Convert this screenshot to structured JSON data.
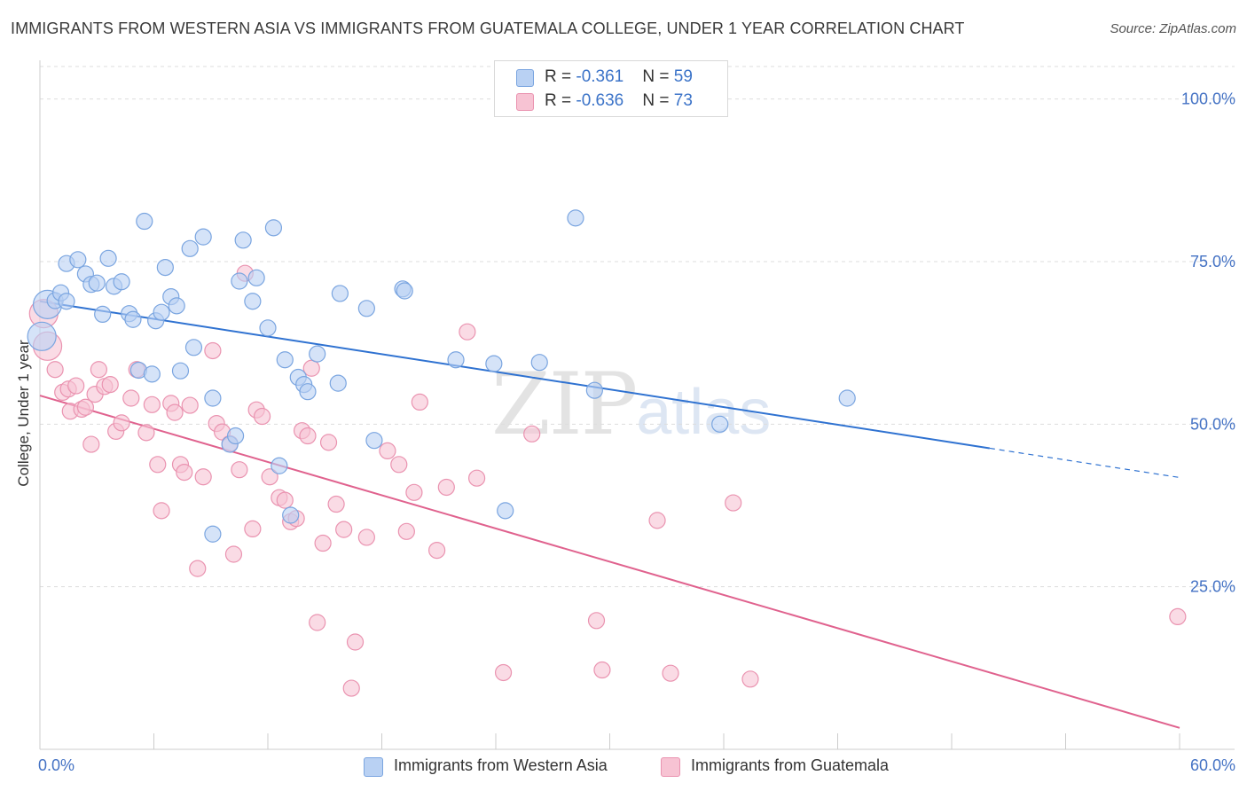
{
  "header": {
    "title": "IMMIGRANTS FROM WESTERN ASIA VS IMMIGRANTS FROM GUATEMALA COLLEGE, UNDER 1 YEAR CORRELATION CHART",
    "source": "Source: ZipAtlas.com"
  },
  "watermark": {
    "zip": "ZIP",
    "atlas": "atlas"
  },
  "legend": {
    "rows": [
      {
        "r_label": "R = ",
        "r_value": "-0.361",
        "n_label": "N = ",
        "n_value": "59"
      },
      {
        "r_label": "R = ",
        "r_value": "-0.636",
        "n_label": "N = ",
        "n_value": "73"
      }
    ]
  },
  "colors": {
    "blue_fill": "#b9d1f3",
    "blue_stroke": "#7aa5e0",
    "blue_line": "#2f72d1",
    "pink_fill": "#f7c3d3",
    "pink_stroke": "#ea93b0",
    "pink_line": "#e0628e",
    "axis_text": "#4472c4",
    "grid": "#dddddd"
  },
  "chart_data": {
    "type": "scatter",
    "title": "IMMIGRANTS FROM WESTERN ASIA VS IMMIGRANTS FROM GUATEMALA COLLEGE, UNDER 1 YEAR CORRELATION CHART",
    "xlabel": "",
    "ylabel": "College, Under 1 year",
    "xlim": [
      0,
      60
    ],
    "ylim": [
      0,
      105
    ],
    "x_tick_labels": [
      "0.0%",
      "60.0%"
    ],
    "y_ticks": [
      25,
      50,
      75,
      100
    ],
    "y_tick_labels": [
      "25.0%",
      "50.0%",
      "75.0%",
      "100.0%"
    ],
    "grid": "horizontal dashed",
    "legend_placement": "top-center",
    "series": [
      {
        "name": "Immigrants from Western Asia",
        "color": "#b9d1f3",
        "r": -0.361,
        "n": 59,
        "trend": {
          "x": [
            0,
            50
          ],
          "y": [
            68.9,
            46.3
          ],
          "dashed_to": [
            60,
            41.8
          ]
        },
        "points": [
          [
            0.1,
            63.5
          ],
          [
            0.4,
            68.4
          ],
          [
            0.8,
            69.0
          ],
          [
            1.1,
            70.2
          ],
          [
            1.4,
            68.9
          ],
          [
            1.4,
            74.7
          ],
          [
            2.0,
            75.3
          ],
          [
            2.4,
            73.1
          ],
          [
            2.7,
            71.5
          ],
          [
            3.0,
            71.7
          ],
          [
            3.3,
            66.9
          ],
          [
            3.6,
            75.5
          ],
          [
            3.9,
            71.2
          ],
          [
            4.3,
            71.9
          ],
          [
            4.7,
            67.0
          ],
          [
            4.9,
            66.1
          ],
          [
            5.2,
            58.3
          ],
          [
            5.5,
            81.2
          ],
          [
            5.9,
            57.7
          ],
          [
            6.1,
            65.9
          ],
          [
            6.4,
            67.2
          ],
          [
            6.6,
            74.1
          ],
          [
            6.9,
            69.6
          ],
          [
            7.2,
            68.2
          ],
          [
            7.4,
            58.2
          ],
          [
            7.9,
            77.0
          ],
          [
            8.1,
            61.8
          ],
          [
            8.6,
            78.8
          ],
          [
            9.1,
            54.0
          ],
          [
            10.0,
            46.9
          ],
          [
            10.3,
            48.2
          ],
          [
            9.1,
            33.1
          ],
          [
            10.5,
            72.0
          ],
          [
            10.7,
            78.3
          ],
          [
            11.2,
            68.9
          ],
          [
            11.4,
            72.5
          ],
          [
            12.0,
            64.8
          ],
          [
            12.3,
            80.2
          ],
          [
            12.6,
            43.6
          ],
          [
            12.9,
            59.9
          ],
          [
            13.2,
            36.0
          ],
          [
            13.6,
            57.2
          ],
          [
            13.9,
            56.1
          ],
          [
            14.1,
            55.0
          ],
          [
            14.6,
            60.8
          ],
          [
            15.7,
            56.3
          ],
          [
            15.8,
            70.1
          ],
          [
            17.2,
            67.8
          ],
          [
            17.6,
            47.5
          ],
          [
            19.1,
            70.8
          ],
          [
            19.2,
            70.5
          ],
          [
            21.9,
            59.9
          ],
          [
            23.9,
            59.3
          ],
          [
            24.5,
            36.7
          ],
          [
            26.3,
            59.5
          ],
          [
            28.2,
            81.7
          ],
          [
            29.2,
            55.2
          ],
          [
            35.8,
            50.0
          ],
          [
            42.5,
            54.0
          ]
        ]
      },
      {
        "name": "Immigrants from Guatemala",
        "color": "#f7c3d3",
        "r": -0.636,
        "n": 73,
        "trend": {
          "x": [
            0,
            60
          ],
          "y": [
            54.4,
            3.3
          ]
        },
        "points": [
          [
            0.2,
            67.0
          ],
          [
            0.4,
            62.0
          ],
          [
            0.8,
            58.4
          ],
          [
            1.2,
            54.9
          ],
          [
            1.5,
            55.4
          ],
          [
            1.6,
            52.0
          ],
          [
            1.9,
            55.9
          ],
          [
            2.2,
            52.3
          ],
          [
            2.4,
            52.6
          ],
          [
            2.7,
            46.9
          ],
          [
            2.9,
            54.6
          ],
          [
            3.1,
            58.4
          ],
          [
            3.4,
            55.8
          ],
          [
            3.7,
            56.1
          ],
          [
            4.0,
            48.9
          ],
          [
            4.3,
            50.2
          ],
          [
            4.8,
            54.0
          ],
          [
            5.1,
            58.4
          ],
          [
            5.6,
            48.7
          ],
          [
            5.9,
            53.0
          ],
          [
            6.2,
            43.8
          ],
          [
            6.4,
            36.7
          ],
          [
            6.9,
            53.2
          ],
          [
            7.1,
            51.8
          ],
          [
            7.4,
            43.8
          ],
          [
            7.6,
            42.6
          ],
          [
            7.9,
            52.9
          ],
          [
            8.3,
            27.8
          ],
          [
            8.6,
            41.9
          ],
          [
            9.1,
            61.3
          ],
          [
            9.3,
            50.1
          ],
          [
            9.6,
            48.8
          ],
          [
            10.0,
            47.0
          ],
          [
            10.2,
            30.0
          ],
          [
            10.5,
            43.0
          ],
          [
            10.8,
            73.2
          ],
          [
            11.2,
            33.9
          ],
          [
            11.4,
            52.2
          ],
          [
            11.7,
            51.2
          ],
          [
            12.1,
            41.9
          ],
          [
            12.6,
            38.7
          ],
          [
            12.9,
            38.3
          ],
          [
            13.2,
            35.0
          ],
          [
            13.5,
            35.5
          ],
          [
            13.8,
            49.0
          ],
          [
            14.1,
            48.2
          ],
          [
            14.3,
            58.6
          ],
          [
            14.6,
            19.5
          ],
          [
            14.9,
            31.7
          ],
          [
            15.2,
            47.2
          ],
          [
            15.6,
            37.7
          ],
          [
            16.0,
            33.8
          ],
          [
            16.4,
            9.4
          ],
          [
            16.6,
            16.5
          ],
          [
            17.2,
            32.6
          ],
          [
            18.3,
            45.9
          ],
          [
            18.9,
            43.8
          ],
          [
            19.3,
            33.5
          ],
          [
            19.7,
            39.5
          ],
          [
            20.0,
            53.4
          ],
          [
            20.9,
            30.6
          ],
          [
            21.4,
            40.3
          ],
          [
            22.5,
            64.2
          ],
          [
            23.0,
            41.7
          ],
          [
            24.4,
            11.8
          ],
          [
            25.9,
            48.5
          ],
          [
            29.3,
            19.8
          ],
          [
            29.6,
            12.2
          ],
          [
            32.5,
            35.2
          ],
          [
            33.2,
            11.7
          ],
          [
            36.5,
            37.9
          ],
          [
            37.4,
            10.8
          ],
          [
            59.9,
            20.4
          ]
        ]
      }
    ]
  },
  "bottom_legend": {
    "items": [
      {
        "label": "Immigrants from Western Asia"
      },
      {
        "label": "Immigrants from Guatemala"
      }
    ]
  }
}
